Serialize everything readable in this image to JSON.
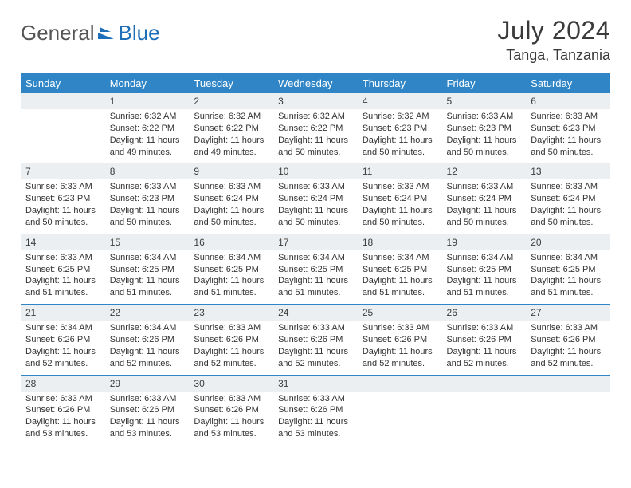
{
  "brand": {
    "part1": "General",
    "part2": "Blue"
  },
  "title": "July 2024",
  "location": "Tanga, Tanzania",
  "colors": {
    "header_bg": "#2f85c5",
    "header_text": "#ffffff",
    "daynum_bg": "#eceff1",
    "row_sep": "#2f85c5",
    "logo_accent": "#1e6fb8",
    "text": "#333333"
  },
  "grid": {
    "cols": 7,
    "rows": 5,
    "start_col": 1
  },
  "weekdays": [
    "Sunday",
    "Monday",
    "Tuesday",
    "Wednesday",
    "Thursday",
    "Friday",
    "Saturday"
  ],
  "weeks": [
    [
      null,
      {
        "d": "1",
        "sr": "Sunrise: 6:32 AM",
        "ss": "Sunset: 6:22 PM",
        "dl1": "Daylight: 11 hours",
        "dl2": "and 49 minutes."
      },
      {
        "d": "2",
        "sr": "Sunrise: 6:32 AM",
        "ss": "Sunset: 6:22 PM",
        "dl1": "Daylight: 11 hours",
        "dl2": "and 49 minutes."
      },
      {
        "d": "3",
        "sr": "Sunrise: 6:32 AM",
        "ss": "Sunset: 6:22 PM",
        "dl1": "Daylight: 11 hours",
        "dl2": "and 50 minutes."
      },
      {
        "d": "4",
        "sr": "Sunrise: 6:32 AM",
        "ss": "Sunset: 6:23 PM",
        "dl1": "Daylight: 11 hours",
        "dl2": "and 50 minutes."
      },
      {
        "d": "5",
        "sr": "Sunrise: 6:33 AM",
        "ss": "Sunset: 6:23 PM",
        "dl1": "Daylight: 11 hours",
        "dl2": "and 50 minutes."
      },
      {
        "d": "6",
        "sr": "Sunrise: 6:33 AM",
        "ss": "Sunset: 6:23 PM",
        "dl1": "Daylight: 11 hours",
        "dl2": "and 50 minutes."
      }
    ],
    [
      {
        "d": "7",
        "sr": "Sunrise: 6:33 AM",
        "ss": "Sunset: 6:23 PM",
        "dl1": "Daylight: 11 hours",
        "dl2": "and 50 minutes."
      },
      {
        "d": "8",
        "sr": "Sunrise: 6:33 AM",
        "ss": "Sunset: 6:23 PM",
        "dl1": "Daylight: 11 hours",
        "dl2": "and 50 minutes."
      },
      {
        "d": "9",
        "sr": "Sunrise: 6:33 AM",
        "ss": "Sunset: 6:24 PM",
        "dl1": "Daylight: 11 hours",
        "dl2": "and 50 minutes."
      },
      {
        "d": "10",
        "sr": "Sunrise: 6:33 AM",
        "ss": "Sunset: 6:24 PM",
        "dl1": "Daylight: 11 hours",
        "dl2": "and 50 minutes."
      },
      {
        "d": "11",
        "sr": "Sunrise: 6:33 AM",
        "ss": "Sunset: 6:24 PM",
        "dl1": "Daylight: 11 hours",
        "dl2": "and 50 minutes."
      },
      {
        "d": "12",
        "sr": "Sunrise: 6:33 AM",
        "ss": "Sunset: 6:24 PM",
        "dl1": "Daylight: 11 hours",
        "dl2": "and 50 minutes."
      },
      {
        "d": "13",
        "sr": "Sunrise: 6:33 AM",
        "ss": "Sunset: 6:24 PM",
        "dl1": "Daylight: 11 hours",
        "dl2": "and 50 minutes."
      }
    ],
    [
      {
        "d": "14",
        "sr": "Sunrise: 6:33 AM",
        "ss": "Sunset: 6:25 PM",
        "dl1": "Daylight: 11 hours",
        "dl2": "and 51 minutes."
      },
      {
        "d": "15",
        "sr": "Sunrise: 6:34 AM",
        "ss": "Sunset: 6:25 PM",
        "dl1": "Daylight: 11 hours",
        "dl2": "and 51 minutes."
      },
      {
        "d": "16",
        "sr": "Sunrise: 6:34 AM",
        "ss": "Sunset: 6:25 PM",
        "dl1": "Daylight: 11 hours",
        "dl2": "and 51 minutes."
      },
      {
        "d": "17",
        "sr": "Sunrise: 6:34 AM",
        "ss": "Sunset: 6:25 PM",
        "dl1": "Daylight: 11 hours",
        "dl2": "and 51 minutes."
      },
      {
        "d": "18",
        "sr": "Sunrise: 6:34 AM",
        "ss": "Sunset: 6:25 PM",
        "dl1": "Daylight: 11 hours",
        "dl2": "and 51 minutes."
      },
      {
        "d": "19",
        "sr": "Sunrise: 6:34 AM",
        "ss": "Sunset: 6:25 PM",
        "dl1": "Daylight: 11 hours",
        "dl2": "and 51 minutes."
      },
      {
        "d": "20",
        "sr": "Sunrise: 6:34 AM",
        "ss": "Sunset: 6:25 PM",
        "dl1": "Daylight: 11 hours",
        "dl2": "and 51 minutes."
      }
    ],
    [
      {
        "d": "21",
        "sr": "Sunrise: 6:34 AM",
        "ss": "Sunset: 6:26 PM",
        "dl1": "Daylight: 11 hours",
        "dl2": "and 52 minutes."
      },
      {
        "d": "22",
        "sr": "Sunrise: 6:34 AM",
        "ss": "Sunset: 6:26 PM",
        "dl1": "Daylight: 11 hours",
        "dl2": "and 52 minutes."
      },
      {
        "d": "23",
        "sr": "Sunrise: 6:33 AM",
        "ss": "Sunset: 6:26 PM",
        "dl1": "Daylight: 11 hours",
        "dl2": "and 52 minutes."
      },
      {
        "d": "24",
        "sr": "Sunrise: 6:33 AM",
        "ss": "Sunset: 6:26 PM",
        "dl1": "Daylight: 11 hours",
        "dl2": "and 52 minutes."
      },
      {
        "d": "25",
        "sr": "Sunrise: 6:33 AM",
        "ss": "Sunset: 6:26 PM",
        "dl1": "Daylight: 11 hours",
        "dl2": "and 52 minutes."
      },
      {
        "d": "26",
        "sr": "Sunrise: 6:33 AM",
        "ss": "Sunset: 6:26 PM",
        "dl1": "Daylight: 11 hours",
        "dl2": "and 52 minutes."
      },
      {
        "d": "27",
        "sr": "Sunrise: 6:33 AM",
        "ss": "Sunset: 6:26 PM",
        "dl1": "Daylight: 11 hours",
        "dl2": "and 52 minutes."
      }
    ],
    [
      {
        "d": "28",
        "sr": "Sunrise: 6:33 AM",
        "ss": "Sunset: 6:26 PM",
        "dl1": "Daylight: 11 hours",
        "dl2": "and 53 minutes."
      },
      {
        "d": "29",
        "sr": "Sunrise: 6:33 AM",
        "ss": "Sunset: 6:26 PM",
        "dl1": "Daylight: 11 hours",
        "dl2": "and 53 minutes."
      },
      {
        "d": "30",
        "sr": "Sunrise: 6:33 AM",
        "ss": "Sunset: 6:26 PM",
        "dl1": "Daylight: 11 hours",
        "dl2": "and 53 minutes."
      },
      {
        "d": "31",
        "sr": "Sunrise: 6:33 AM",
        "ss": "Sunset: 6:26 PM",
        "dl1": "Daylight: 11 hours",
        "dl2": "and 53 minutes."
      },
      null,
      null,
      null
    ]
  ]
}
